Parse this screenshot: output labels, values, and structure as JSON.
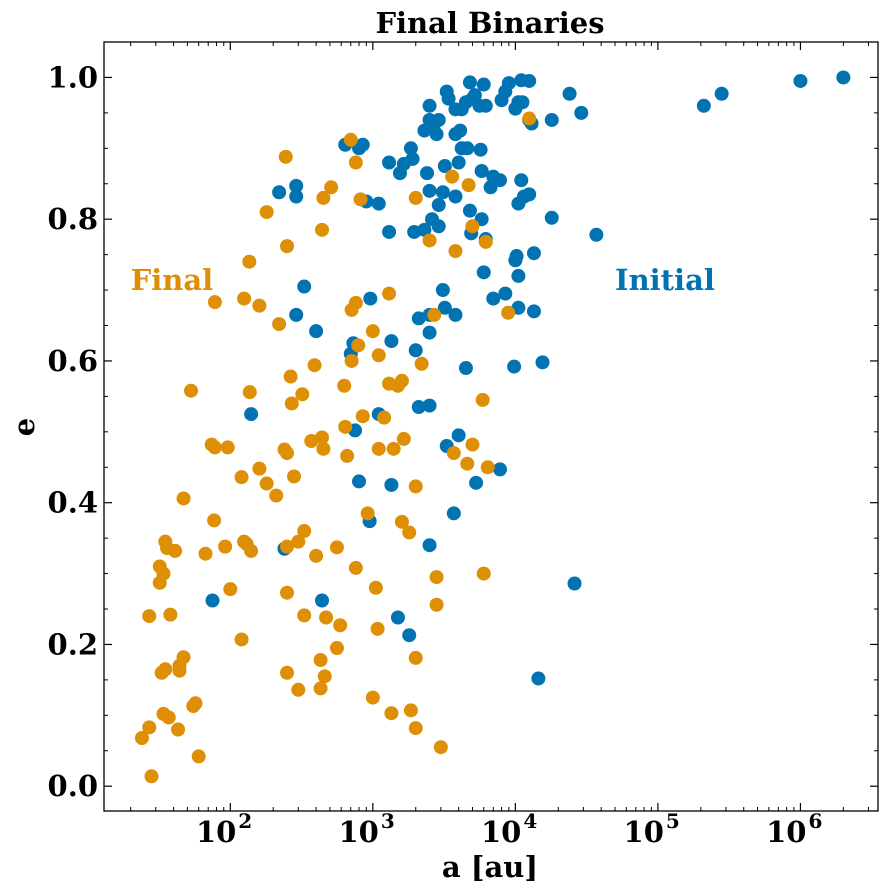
{
  "chart_data": {
    "type": "scatter",
    "title": "Final Binaries",
    "xlabel": "a [au]",
    "ylabel": "e",
    "xscale": "log",
    "xlim": [
      13,
      3500000
    ],
    "ylim": [
      -0.035,
      1.05
    ],
    "grid": false,
    "x_ticks": [
      {
        "value": 100,
        "base": "10",
        "exp": "2"
      },
      {
        "value": 1000,
        "base": "10",
        "exp": "3"
      },
      {
        "value": 10000,
        "base": "10",
        "exp": "4"
      },
      {
        "value": 100000,
        "base": "10",
        "exp": "5"
      },
      {
        "value": 1000000,
        "base": "10",
        "exp": "6"
      }
    ],
    "y_ticks": [
      {
        "value": 0.0,
        "label": "0.0"
      },
      {
        "value": 0.2,
        "label": "0.2"
      },
      {
        "value": 0.4,
        "label": "0.4"
      },
      {
        "value": 0.6,
        "label": "0.6"
      },
      {
        "value": 0.8,
        "label": "0.8"
      },
      {
        "value": 1.0,
        "label": "1.0"
      }
    ],
    "annotations": [
      {
        "text": "Final",
        "color": "#de8f05",
        "x": 20,
        "y": 0.7
      },
      {
        "text": "Initial",
        "color": "#0173b2",
        "x": 50000,
        "y": 0.7
      }
    ],
    "series": [
      {
        "name": "Initial",
        "color": "#0173b2",
        "points": [
          [
            2000000,
            1.0
          ],
          [
            1000000,
            0.995
          ],
          [
            280000,
            0.977
          ],
          [
            210000,
            0.96
          ],
          [
            24000,
            0.977
          ],
          [
            29000,
            0.95
          ],
          [
            18000,
            0.94
          ],
          [
            37000,
            0.778
          ],
          [
            18000,
            0.802
          ],
          [
            26000,
            0.286
          ],
          [
            14500,
            0.152
          ],
          [
            15500,
            0.598
          ],
          [
            9800,
            0.592
          ],
          [
            7800,
            0.447
          ],
          [
            11000,
            0.996
          ],
          [
            12500,
            0.995
          ],
          [
            9000,
            0.992
          ],
          [
            8500,
            0.98
          ],
          [
            8000,
            0.968
          ],
          [
            10000,
            0.956
          ],
          [
            10500,
            0.965
          ],
          [
            11200,
            0.965
          ],
          [
            12500,
            0.94
          ],
          [
            13000,
            0.935
          ],
          [
            6000,
            0.99
          ],
          [
            4800,
            0.993
          ],
          [
            5200,
            0.975
          ],
          [
            4500,
            0.965
          ],
          [
            3800,
            0.955
          ],
          [
            4200,
            0.955
          ],
          [
            5000,
            0.97
          ],
          [
            5600,
            0.96
          ],
          [
            6200,
            0.96
          ],
          [
            3400,
            0.97
          ],
          [
            3300,
            0.98
          ],
          [
            2500,
            0.96
          ],
          [
            2500,
            0.94
          ],
          [
            2900,
            0.94
          ],
          [
            2700,
            0.935
          ],
          [
            2800,
            0.92
          ],
          [
            2300,
            0.925
          ],
          [
            4100,
            0.925
          ],
          [
            3800,
            0.92
          ],
          [
            5700,
            0.898
          ],
          [
            4600,
            0.9
          ],
          [
            4200,
            0.9
          ],
          [
            1850,
            0.9
          ],
          [
            1900,
            0.885
          ],
          [
            1650,
            0.878
          ],
          [
            1550,
            0.865
          ],
          [
            1300,
            0.88
          ],
          [
            4000,
            0.88
          ],
          [
            5800,
            0.868
          ],
          [
            7000,
            0.86
          ],
          [
            7800,
            0.855
          ],
          [
            6700,
            0.845
          ],
          [
            3200,
            0.875
          ],
          [
            2400,
            0.865
          ],
          [
            2500,
            0.84
          ],
          [
            3100,
            0.838
          ],
          [
            3800,
            0.832
          ],
          [
            2900,
            0.82
          ],
          [
            4800,
            0.812
          ],
          [
            5800,
            0.8
          ],
          [
            11000,
            0.855
          ],
          [
            11500,
            0.832
          ],
          [
            12500,
            0.835
          ],
          [
            10500,
            0.822
          ],
          [
            2600,
            0.8
          ],
          [
            2900,
            0.79
          ],
          [
            2300,
            0.785
          ],
          [
            4900,
            0.78
          ],
          [
            6200,
            0.772
          ],
          [
            10200,
            0.748
          ],
          [
            10000,
            0.742
          ],
          [
            13500,
            0.752
          ],
          [
            10500,
            0.72
          ],
          [
            6000,
            0.725
          ],
          [
            8500,
            0.695
          ],
          [
            7000,
            0.688
          ],
          [
            10500,
            0.675
          ],
          [
            13500,
            0.67
          ],
          [
            3100,
            0.7
          ],
          [
            3200,
            0.675
          ],
          [
            3800,
            0.665
          ],
          [
            2500,
            0.665
          ],
          [
            2100,
            0.66
          ],
          [
            2500,
            0.64
          ],
          [
            2000,
            0.615
          ],
          [
            4500,
            0.59
          ],
          [
            1950,
            0.782
          ],
          [
            1300,
            0.782
          ],
          [
            1100,
            0.822
          ],
          [
            900,
            0.825
          ],
          [
            800,
            0.9
          ],
          [
            640,
            0.905
          ],
          [
            850,
            0.905
          ],
          [
            290,
            0.847
          ],
          [
            290,
            0.832
          ],
          [
            220,
            0.838
          ],
          [
            330,
            0.705
          ],
          [
            400,
            0.642
          ],
          [
            290,
            0.665
          ],
          [
            960,
            0.688
          ],
          [
            1350,
            0.628
          ],
          [
            730,
            0.625
          ],
          [
            700,
            0.61
          ],
          [
            750,
            0.502
          ],
          [
            800,
            0.43
          ],
          [
            1100,
            0.525
          ],
          [
            140,
            0.525
          ],
          [
            1350,
            0.425
          ],
          [
            2100,
            0.535
          ],
          [
            2500,
            0.537
          ],
          [
            3300,
            0.48
          ],
          [
            4000,
            0.495
          ],
          [
            5300,
            0.428
          ],
          [
            3700,
            0.385
          ],
          [
            950,
            0.374
          ],
          [
            2500,
            0.34
          ],
          [
            240,
            0.335
          ],
          [
            1500,
            0.238
          ],
          [
            1800,
            0.213
          ],
          [
            440,
            0.262
          ],
          [
            75,
            0.262
          ]
        ]
      },
      {
        "name": "Final",
        "color": "#de8f05",
        "points": [
          [
            245,
            0.888
          ],
          [
            700,
            0.912
          ],
          [
            760,
            0.88
          ],
          [
            510,
            0.845
          ],
          [
            450,
            0.83
          ],
          [
            820,
            0.828
          ],
          [
            180,
            0.81
          ],
          [
            440,
            0.785
          ],
          [
            250,
            0.762
          ],
          [
            136,
            0.74
          ],
          [
            78,
            0.683
          ],
          [
            125,
            0.688
          ],
          [
            160,
            0.678
          ],
          [
            760,
            0.682
          ],
          [
            710,
            0.672
          ],
          [
            1300,
            0.695
          ],
          [
            220,
            0.652
          ],
          [
            390,
            0.594
          ],
          [
            790,
            0.622
          ],
          [
            1000,
            0.642
          ],
          [
            710,
            0.6
          ],
          [
            1100,
            0.608
          ],
          [
            2000,
            0.83
          ],
          [
            3600,
            0.86
          ],
          [
            4700,
            0.848
          ],
          [
            5000,
            0.79
          ],
          [
            2500,
            0.77
          ],
          [
            3800,
            0.755
          ],
          [
            6200,
            0.768
          ],
          [
            8900,
            0.668
          ],
          [
            12500,
            0.942
          ],
          [
            2700,
            0.665
          ],
          [
            2200,
            0.596
          ],
          [
            1300,
            0.568
          ],
          [
            1500,
            0.565
          ],
          [
            1600,
            0.572
          ],
          [
            265,
            0.578
          ],
          [
            320,
            0.553
          ],
          [
            630,
            0.565
          ],
          [
            53,
            0.558
          ],
          [
            137,
            0.556
          ],
          [
            270,
            0.54
          ],
          [
            5900,
            0.545
          ],
          [
            1200,
            0.52
          ],
          [
            850,
            0.522
          ],
          [
            1650,
            0.49
          ],
          [
            640,
            0.507
          ],
          [
            370,
            0.487
          ],
          [
            440,
            0.492
          ],
          [
            1100,
            0.476
          ],
          [
            1400,
            0.476
          ],
          [
            3700,
            0.47
          ],
          [
            5000,
            0.482
          ],
          [
            74,
            0.482
          ],
          [
            78,
            0.478
          ],
          [
            96,
            0.478
          ],
          [
            240,
            0.475
          ],
          [
            250,
            0.47
          ],
          [
            450,
            0.476
          ],
          [
            660,
            0.466
          ],
          [
            4600,
            0.455
          ],
          [
            6400,
            0.45
          ],
          [
            160,
            0.448
          ],
          [
            120,
            0.436
          ],
          [
            180,
            0.427
          ],
          [
            280,
            0.437
          ],
          [
            2000,
            0.423
          ],
          [
            210,
            0.41
          ],
          [
            47,
            0.406
          ],
          [
            920,
            0.385
          ],
          [
            77,
            0.375
          ],
          [
            1600,
            0.373
          ],
          [
            1800,
            0.358
          ],
          [
            330,
            0.36
          ],
          [
            35,
            0.345
          ],
          [
            36,
            0.336
          ],
          [
            41,
            0.332
          ],
          [
            92,
            0.338
          ],
          [
            67,
            0.328
          ],
          [
            125,
            0.345
          ],
          [
            130,
            0.342
          ],
          [
            140,
            0.332
          ],
          [
            250,
            0.338
          ],
          [
            300,
            0.345
          ],
          [
            400,
            0.325
          ],
          [
            560,
            0.337
          ],
          [
            2800,
            0.295
          ],
          [
            6000,
            0.3
          ],
          [
            32,
            0.31
          ],
          [
            34,
            0.3
          ],
          [
            32,
            0.287
          ],
          [
            760,
            0.308
          ],
          [
            1050,
            0.28
          ],
          [
            100,
            0.278
          ],
          [
            250,
            0.273
          ],
          [
            27,
            0.24
          ],
          [
            38,
            0.242
          ],
          [
            330,
            0.241
          ],
          [
            470,
            0.238
          ],
          [
            2800,
            0.256
          ],
          [
            1080,
            0.222
          ],
          [
            590,
            0.227
          ],
          [
            560,
            0.195
          ],
          [
            120,
            0.207
          ],
          [
            2000,
            0.181
          ],
          [
            47,
            0.182
          ],
          [
            44,
            0.17
          ],
          [
            44,
            0.163
          ],
          [
            35,
            0.165
          ],
          [
            33,
            0.16
          ],
          [
            430,
            0.178
          ],
          [
            460,
            0.155
          ],
          [
            250,
            0.16
          ],
          [
            55,
            0.113
          ],
          [
            57,
            0.117
          ],
          [
            34,
            0.102
          ],
          [
            37,
            0.097
          ],
          [
            43,
            0.08
          ],
          [
            300,
            0.136
          ],
          [
            430,
            0.138
          ],
          [
            1000,
            0.125
          ],
          [
            1350,
            0.103
          ],
          [
            1850,
            0.107
          ],
          [
            2000,
            0.082
          ],
          [
            3000,
            0.055
          ],
          [
            60,
            0.042
          ],
          [
            24,
            0.068
          ],
          [
            27,
            0.083
          ],
          [
            28,
            0.014
          ]
        ]
      }
    ]
  }
}
